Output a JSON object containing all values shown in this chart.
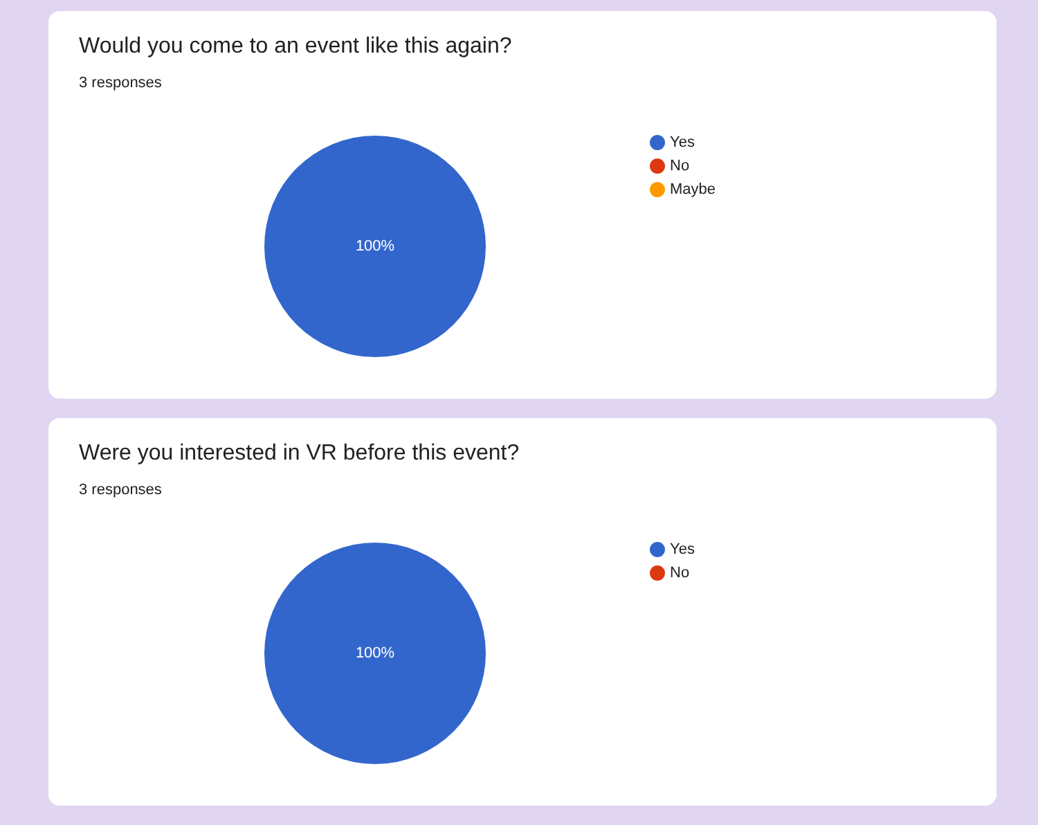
{
  "chart_data": [
    {
      "type": "pie",
      "title": "Would you come to an event like this again?",
      "subtitle": "3 responses",
      "categories": [
        "Yes",
        "No",
        "Maybe"
      ],
      "values": [
        100,
        0,
        0
      ],
      "colors": [
        "#3366cc",
        "#dc3912",
        "#ff9900"
      ],
      "value_labels": [
        "100%",
        null,
        null
      ],
      "legend": "right"
    },
    {
      "type": "pie",
      "title": "Were you interested in VR before this event?",
      "subtitle": "3 responses",
      "categories": [
        "Yes",
        "No"
      ],
      "values": [
        100,
        0
      ],
      "colors": [
        "#3366cc",
        "#dc3912"
      ],
      "value_labels": [
        "100%",
        null
      ],
      "legend": "right"
    }
  ]
}
